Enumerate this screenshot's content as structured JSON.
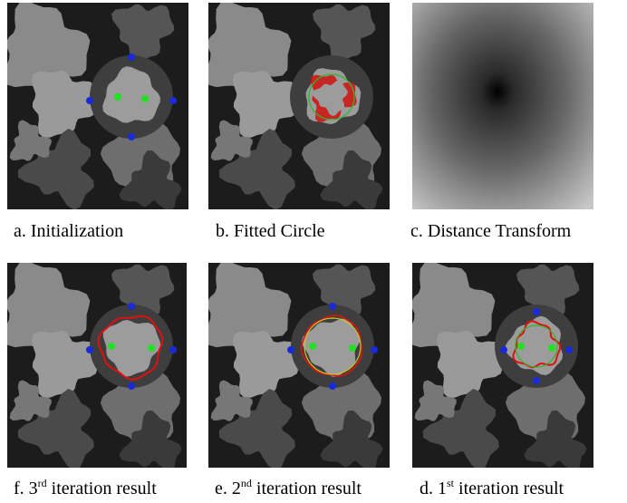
{
  "panels": [
    {
      "caption": "a. Initialization"
    },
    {
      "caption": "b. Fitted Circle"
    },
    {
      "caption": "c. Distance Transform"
    },
    {
      "caption": {
        "before": "f. 3",
        "sup": "rd",
        "after": " iteration result"
      }
    },
    {
      "caption": {
        "before": "e. 2",
        "sup": "nd",
        "after": " iteration result"
      }
    },
    {
      "caption": {
        "before": "d. 1",
        "sup": "st",
        "after": " iteration result"
      }
    }
  ]
}
